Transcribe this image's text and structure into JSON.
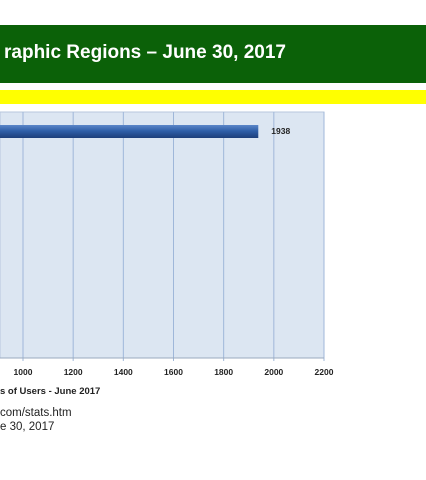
{
  "title": "raphic Regions – June 30, 2017",
  "footer": {
    "source_line1": "com/stats.htm",
    "source_line2": "e 30, 2017"
  },
  "colors": {
    "title_bg": "#0b6108",
    "stripe": "#ffff00",
    "plot_bg": "#dce6f2",
    "bar": "#2f5fa8",
    "grid": "#9fb7d9"
  },
  "chart_data": {
    "type": "bar",
    "orientation": "horizontal",
    "title": "raphic Regions – June 30, 2017",
    "xlabel": "s of Users - June 2017",
    "xlim": [
      0,
      2200
    ],
    "xticks": [
      1000,
      1200,
      1400,
      1600,
      1800,
      2000,
      2200
    ],
    "grid": true,
    "series": [
      {
        "values": [
          1938
        ],
        "labels": [
          "1938"
        ]
      }
    ]
  }
}
